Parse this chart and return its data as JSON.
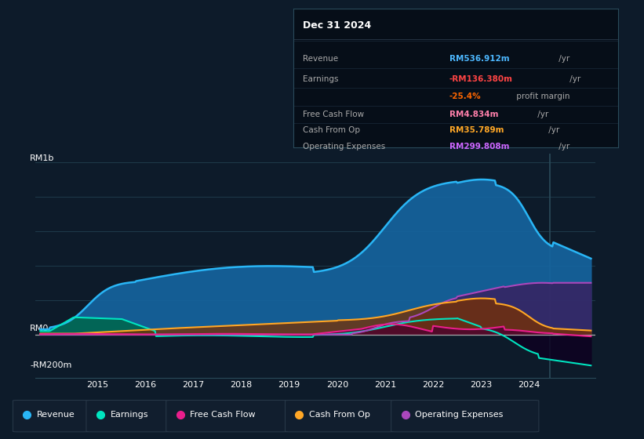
{
  "bg_color": "#0d1b2a",
  "plot_bg_color": "#0d1b2a",
  "grid_color": "#1e3a4a",
  "title_box_date": "Dec 31 2024",
  "info_rows": [
    {
      "label": "Revenue",
      "value": "RM536.912m",
      "suffix": " /yr",
      "value_color": "#4db8ff",
      "label_color": "#aaaaaa"
    },
    {
      "label": "Earnings",
      "value": "-RM136.380m",
      "suffix": " /yr",
      "value_color": "#ff4444",
      "label_color": "#aaaaaa"
    },
    {
      "label": "",
      "value": "-25.4%",
      "suffix": " profit margin",
      "value_color": "#ff6600",
      "label_color": "#aaaaaa"
    },
    {
      "label": "Free Cash Flow",
      "value": "RM4.834m",
      "suffix": " /yr",
      "value_color": "#ff80ab",
      "label_color": "#aaaaaa"
    },
    {
      "label": "Cash From Op",
      "value": "RM35.789m",
      "suffix": " /yr",
      "value_color": "#ffa726",
      "label_color": "#aaaaaa"
    },
    {
      "label": "Operating Expenses",
      "value": "RM299.808m",
      "suffix": " /yr",
      "value_color": "#cc66ff",
      "label_color": "#aaaaaa"
    }
  ],
  "ylabel_top": "RM1b",
  "ylabel_mid": "RM0",
  "ylabel_bot": "-RM200m",
  "series": {
    "revenue": {
      "color": "#29b6f6",
      "fill_color": "#1565a0",
      "label": "Revenue"
    },
    "earnings": {
      "color": "#00e5c0",
      "fill_color": "#006650",
      "label": "Earnings"
    },
    "fcf": {
      "color": "#e91e8c",
      "fill_color": "#4a0030",
      "label": "Free Cash Flow"
    },
    "cashfromop": {
      "color": "#ffa726",
      "fill_color": "#7a3000",
      "label": "Cash From Op"
    },
    "opex": {
      "color": "#ab47bc",
      "fill_color": "#3d1a5a",
      "label": "Operating Expenses"
    }
  },
  "x_ticks": [
    2015,
    2016,
    2017,
    2018,
    2019,
    2020,
    2021,
    2022,
    2023,
    2024
  ],
  "ylim": [
    -250,
    1050
  ],
  "xlim": [
    2013.7,
    2025.4
  ]
}
